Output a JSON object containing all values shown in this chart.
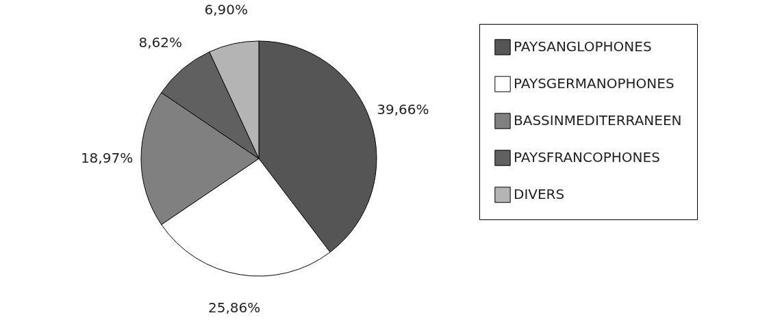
{
  "chart_data": {
    "type": "pie",
    "categories": [
      "PAYSANGLOPHONES",
      "PAYSGERMANOPHONES",
      "BASSINMEDITERRANEEN",
      "PAYSFRANCOPHONES",
      "DIVERS"
    ],
    "values": [
      39.66,
      25.86,
      18.97,
      8.62,
      6.9
    ],
    "colors": [
      "#555555",
      "#ffffff",
      "#808080",
      "#606060",
      "#b4b4b4"
    ],
    "value_labels": [
      "39,66%",
      "25,86%",
      "18,97%",
      "8,62%",
      "6,90%"
    ],
    "legend": "right"
  }
}
